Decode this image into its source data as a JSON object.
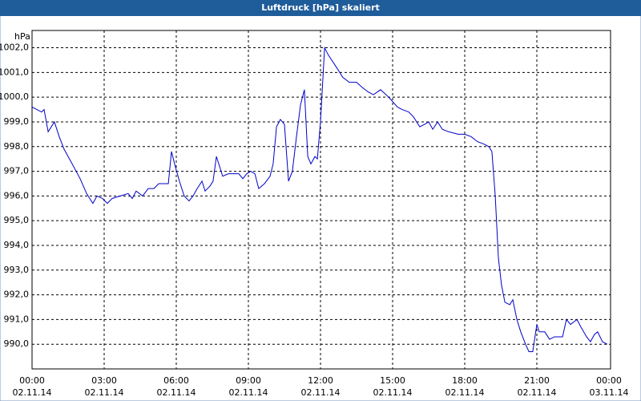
{
  "chart_data": {
    "type": "line",
    "title": "Luftdruck [hPa] skaliert",
    "y_label": "hPa",
    "x": [
      0,
      0.2,
      0.4,
      0.5,
      0.67,
      0.93,
      1.13,
      1.33,
      1.67,
      2,
      2.27,
      2.53,
      2.7,
      2.93,
      3.13,
      3.33,
      3.67,
      4,
      4.17,
      4.33,
      4.6,
      4.83,
      5.07,
      5.27,
      5.5,
      5.67,
      5.8,
      5.93,
      6.13,
      6.33,
      6.53,
      6.7,
      6.87,
      7.07,
      7.2,
      7.4,
      7.53,
      7.67,
      7.93,
      8.17,
      8.4,
      8.6,
      8.77,
      8.93,
      9.1,
      9.27,
      9.43,
      9.67,
      9.9,
      10.03,
      10.17,
      10.33,
      10.5,
      10.67,
      10.83,
      11,
      11.17,
      11.33,
      11.47,
      11.6,
      11.77,
      11.87,
      12,
      12.17,
      12.33,
      12.67,
      12.93,
      13.2,
      13.5,
      13.73,
      14,
      14.2,
      14.5,
      14.73,
      14.93,
      15.2,
      15.4,
      15.67,
      15.87,
      16.13,
      16.33,
      16.5,
      16.67,
      16.87,
      17.07,
      17.33,
      17.73,
      18,
      18.27,
      18.53,
      18.8,
      19,
      19.13,
      19.27,
      19.4,
      19.53,
      19.67,
      19.87,
      20,
      20.17,
      20.33,
      20.53,
      20.67,
      20.83,
      21,
      21.1,
      21.33,
      21.53,
      21.73,
      22.07,
      22.23,
      22.4,
      22.67,
      22.83,
      23.07,
      23.23,
      23.4,
      23.53,
      23.73,
      23.93
    ],
    "series": [
      {
        "name": "Luftdruck",
        "color": "#0000c8",
        "values": [
          999.6,
          999.5,
          999.4,
          999.5,
          998.6,
          999.0,
          998.4,
          997.9,
          997.3,
          996.7,
          996.1,
          995.7,
          996.0,
          995.9,
          995.7,
          995.9,
          996.0,
          996.1,
          995.9,
          996.2,
          996.0,
          996.3,
          996.3,
          996.5,
          996.5,
          996.5,
          997.8,
          997.3,
          996.6,
          996.0,
          995.8,
          996.0,
          996.3,
          996.6,
          996.2,
          996.4,
          996.6,
          997.6,
          996.8,
          996.9,
          996.9,
          996.9,
          996.7,
          996.9,
          997.0,
          996.9,
          996.3,
          996.5,
          996.8,
          997.3,
          998.8,
          999.1,
          998.9,
          996.6,
          997.0,
          998.4,
          999.7,
          1000.3,
          997.6,
          997.3,
          997.6,
          997.5,
          999.0,
          1002.0,
          1001.7,
          1001.2,
          1000.8,
          1000.6,
          1000.6,
          1000.4,
          1000.2,
          1000.1,
          1000.3,
          1000.1,
          999.9,
          999.6,
          999.5,
          999.4,
          999.2,
          998.8,
          998.9,
          999.0,
          998.7,
          999.0,
          998.7,
          998.6,
          998.5,
          998.5,
          998.4,
          998.2,
          998.1,
          998.0,
          997.8,
          996.0,
          993.5,
          992.4,
          991.7,
          991.6,
          991.8,
          991.0,
          990.5,
          990.0,
          989.7,
          989.7,
          990.8,
          990.5,
          990.5,
          990.2,
          990.3,
          990.3,
          991.0,
          990.8,
          991.0,
          990.7,
          990.3,
          990.1,
          990.4,
          990.5,
          990.1,
          990.0
        ]
      }
    ],
    "xlim": [
      0,
      24
    ],
    "xticks": [
      {
        "value": 0,
        "label": "00:00",
        "date": "02.11.14"
      },
      {
        "value": 3,
        "label": "03:00",
        "date": "02.11.14"
      },
      {
        "value": 6,
        "label": "06:00",
        "date": "02.11.14"
      },
      {
        "value": 9,
        "label": "09:00",
        "date": "02.11.14"
      },
      {
        "value": 12,
        "label": "12:00",
        "date": "02.11.14"
      },
      {
        "value": 15,
        "label": "15:00",
        "date": "02.11.14"
      },
      {
        "value": 18,
        "label": "18:00",
        "date": "02.11.14"
      },
      {
        "value": 21,
        "label": "21:00",
        "date": "02.11.14"
      },
      {
        "value": 24,
        "label": "00:00",
        "date": "03.11.14"
      }
    ],
    "ylim": [
      989,
      1002.7
    ],
    "yticks": [
      {
        "value": 990,
        "label": "990,0"
      },
      {
        "value": 991,
        "label": "991,0"
      },
      {
        "value": 992,
        "label": "992,0"
      },
      {
        "value": 993,
        "label": "993,0"
      },
      {
        "value": 994,
        "label": "994,0"
      },
      {
        "value": 995,
        "label": "995,0"
      },
      {
        "value": 996,
        "label": "996,0"
      },
      {
        "value": 997,
        "label": "997,0"
      },
      {
        "value": 998,
        "label": "998,0"
      },
      {
        "value": 999,
        "label": "999,0"
      },
      {
        "value": 1000,
        "label": "1000,0"
      },
      {
        "value": 1001,
        "label": "1001,0"
      },
      {
        "value": 1002,
        "label": "1002,0"
      }
    ],
    "grid": true
  }
}
